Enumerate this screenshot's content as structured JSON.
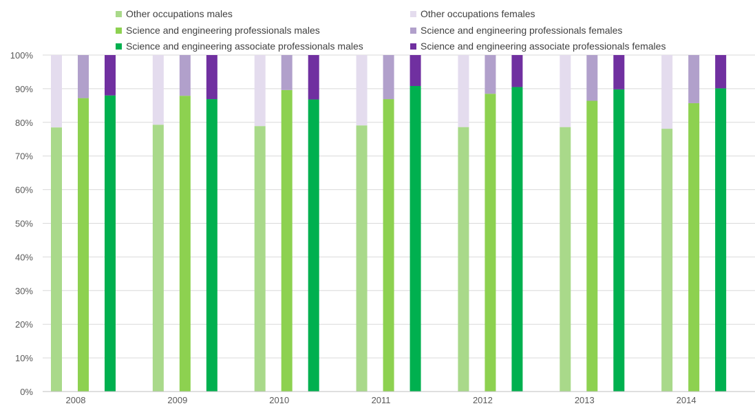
{
  "chart_data": {
    "type": "bar",
    "subtype": "100% stacked column (three bars per year, each split male/female)",
    "categories": [
      "2008",
      "2009",
      "2010",
      "2011",
      "2012",
      "2013",
      "2014"
    ],
    "groups": [
      {
        "male_name": "Other occupations males",
        "female_name": "Other occupations females",
        "male_color": "#a9d98a",
        "female_color": "#e4dcee",
        "male_values": [
          78.5,
          79.3,
          78.9,
          79.1,
          78.6,
          78.6,
          78.1
        ],
        "female_values": [
          21.5,
          20.7,
          21.1,
          20.9,
          21.4,
          21.4,
          21.9
        ]
      },
      {
        "male_name": "Science and engineering professionals males",
        "female_name": "Science and engineering professionals females",
        "male_color": "#8dd150",
        "female_color": "#b1a0cb",
        "male_values": [
          87.2,
          87.9,
          89.6,
          86.9,
          88.5,
          86.4,
          85.7
        ],
        "female_values": [
          12.8,
          12.1,
          10.4,
          13.1,
          11.5,
          13.6,
          14.3
        ]
      },
      {
        "male_name": "Science and engineering associate professionals males",
        "female_name": "Science and engineering associate professionals females",
        "male_color": "#00b04f",
        "female_color": "#7030a0",
        "male_values": [
          88.0,
          86.9,
          86.8,
          90.8,
          90.5,
          89.8,
          90.1
        ],
        "female_values": [
          12.0,
          13.1,
          13.2,
          9.2,
          9.5,
          10.2,
          9.9
        ]
      }
    ],
    "legend": [
      {
        "label": "Other occupations males",
        "color": "#a9d98a"
      },
      {
        "label": "Science and engineering professionals males",
        "color": "#8dd150"
      },
      {
        "label": "Science and engineering associate professionals males",
        "color": "#00b04f"
      },
      {
        "label": "Other occupations females",
        "color": "#e4dcee"
      },
      {
        "label": "Science and engineering professionals females",
        "color": "#b1a0cb"
      },
      {
        "label": "Science and engineering associate professionals females",
        "color": "#7030a0"
      }
    ],
    "yticks": [
      "0%",
      "10%",
      "20%",
      "30%",
      "40%",
      "50%",
      "60%",
      "70%",
      "80%",
      "90%",
      "100%"
    ],
    "ylim": [
      0,
      100
    ],
    "grid": true,
    "legend_position": "top"
  }
}
